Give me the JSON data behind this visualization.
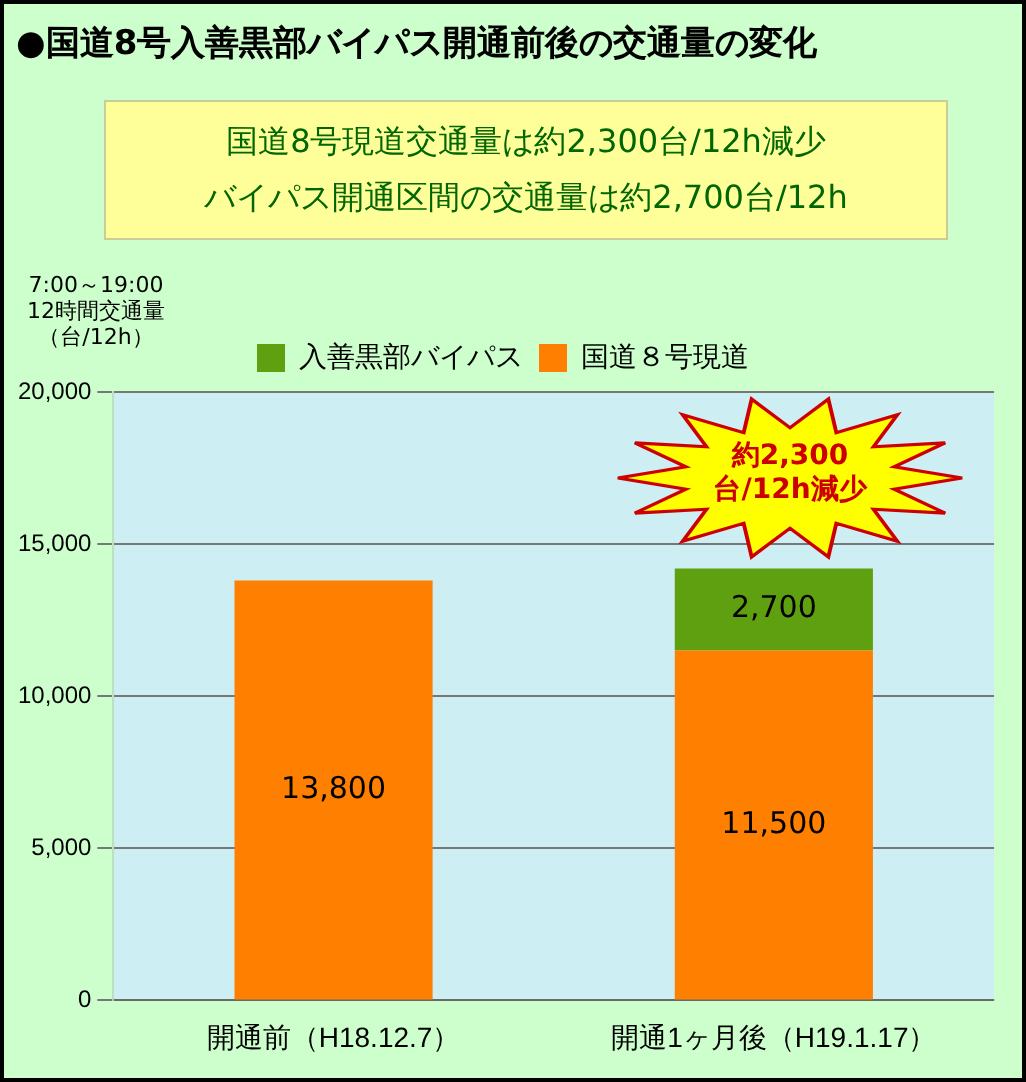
{
  "chart_data": {
    "type": "bar",
    "stacked": true,
    "title": "●国道8号入善黒部バイパス開通前後の交通量の変化",
    "ylabel": "7:00～19:00 12時間交通量（台/12h）",
    "categories": [
      "開通前（H18.12.7）",
      "開通1ヶ月後（H19.1.17）"
    ],
    "series": [
      {
        "name": "国道８号現道",
        "color": "#ff7f00",
        "values": [
          13800,
          11500
        ],
        "value_labels": [
          "13,800",
          "11,500"
        ]
      },
      {
        "name": "入善黒部バイパス",
        "color": "#5fa010",
        "values": [
          null,
          2700
        ],
        "value_labels": [
          null,
          "2,700"
        ]
      }
    ],
    "ylim": [
      0,
      20000
    ],
    "yticks": [
      0,
      {
        "value": 5000,
        "label": "5,000"
      },
      {
        "value": 10000,
        "label": "10,000"
      },
      {
        "value": 15000,
        "label": "15,000"
      },
      {
        "value": 20000,
        "label": "20,000"
      }
    ],
    "grid": "y",
    "legend": "top",
    "annotations": [
      "国道8号現道交通量は約2,300台/12h減少",
      "バイパス開通区間の交通量は約2,700台/12h",
      "約2,300台/12h減少"
    ]
  }
}
